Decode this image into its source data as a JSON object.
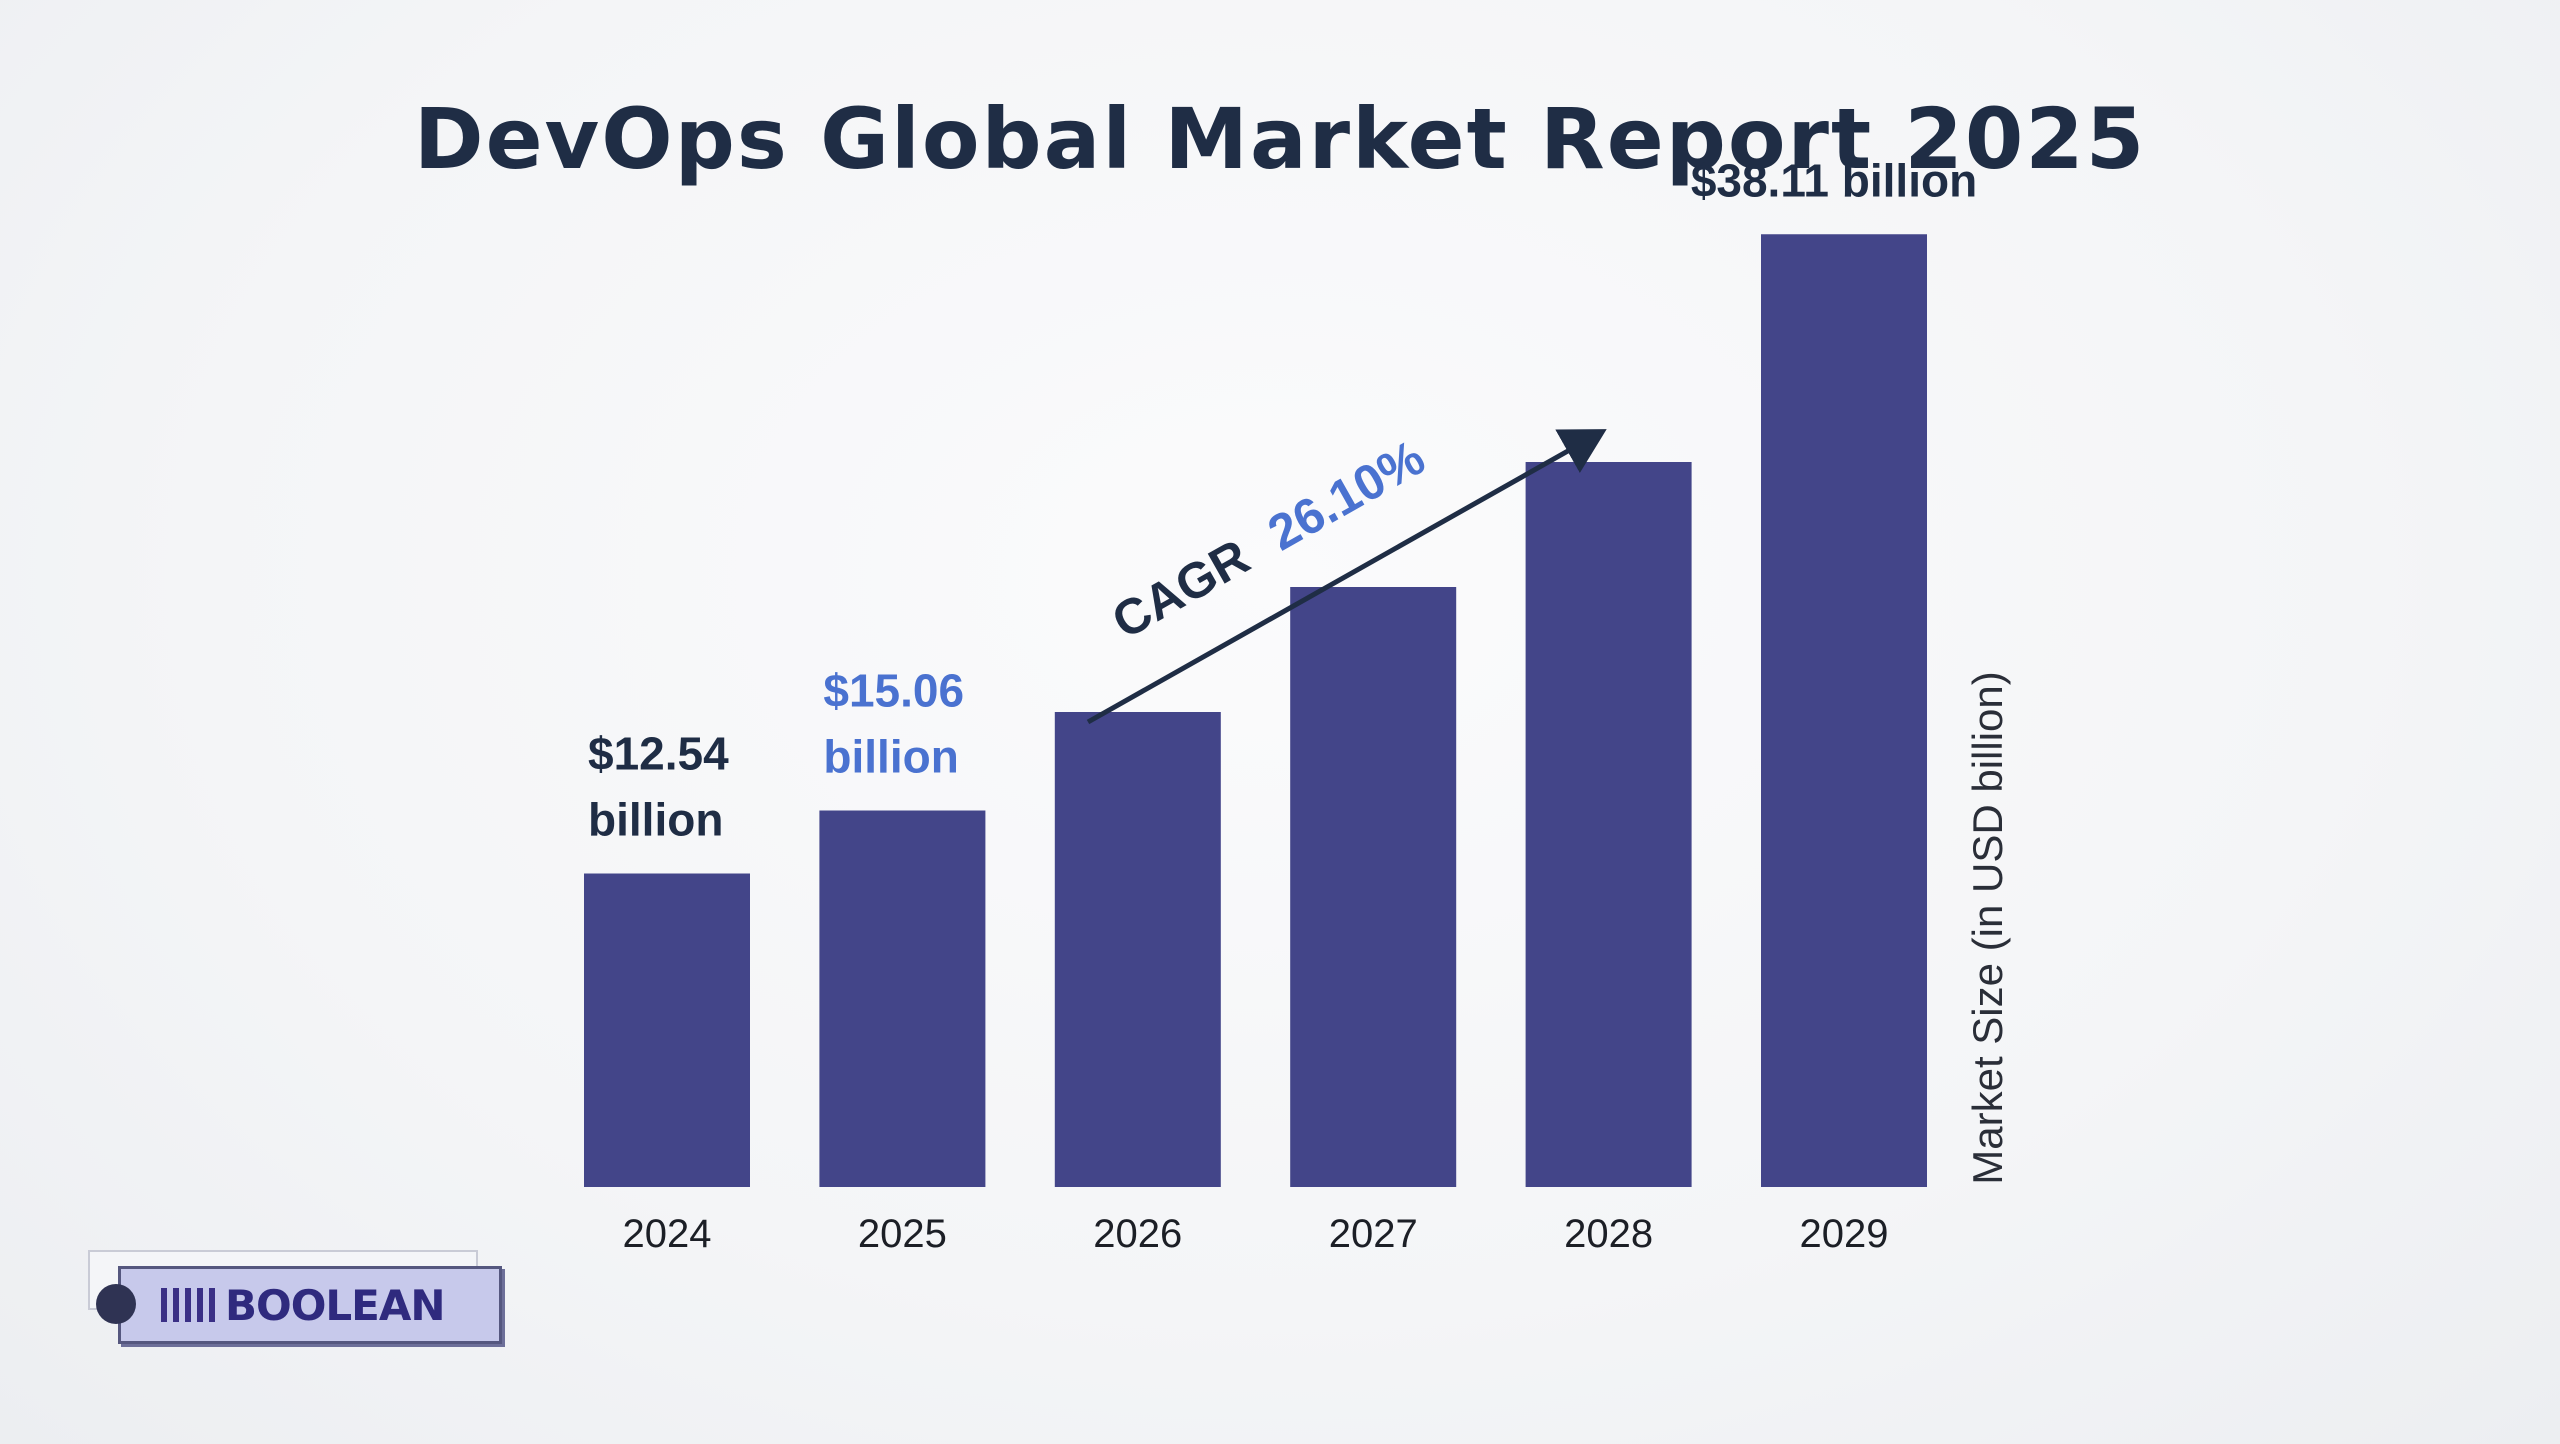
{
  "brand": {
    "name": "BOOLEAN",
    "colors": {
      "bar": "#434589",
      "accent": "#4a72d0",
      "dark": "#1f2d45"
    }
  },
  "chart_data": {
    "type": "bar",
    "title": "DevOps Global Market Report 2025",
    "xlabel": "",
    "ylabel": "Market Size (in USD billion)",
    "categories": [
      "2024",
      "2025",
      "2026",
      "2027",
      "2028",
      "2029"
    ],
    "values": [
      12.54,
      15.06,
      19.0,
      24.0,
      29.0,
      38.11
    ],
    "ylim": [
      0,
      40
    ],
    "grid": false,
    "legend": "none",
    "data_labels": [
      {
        "category": "2024",
        "lines": [
          "$12.54",
          "billion"
        ],
        "color": "#1f2d45"
      },
      {
        "category": "2025",
        "lines": [
          "$15.06",
          "billion"
        ],
        "color": "#4a72d0"
      },
      {
        "category": "2029",
        "lines": [
          "$38.11 billion"
        ],
        "color": "#1f2d45"
      }
    ],
    "annotation": {
      "prefix": "CAGR",
      "value": "26.10%",
      "arrow": "increasing"
    }
  }
}
